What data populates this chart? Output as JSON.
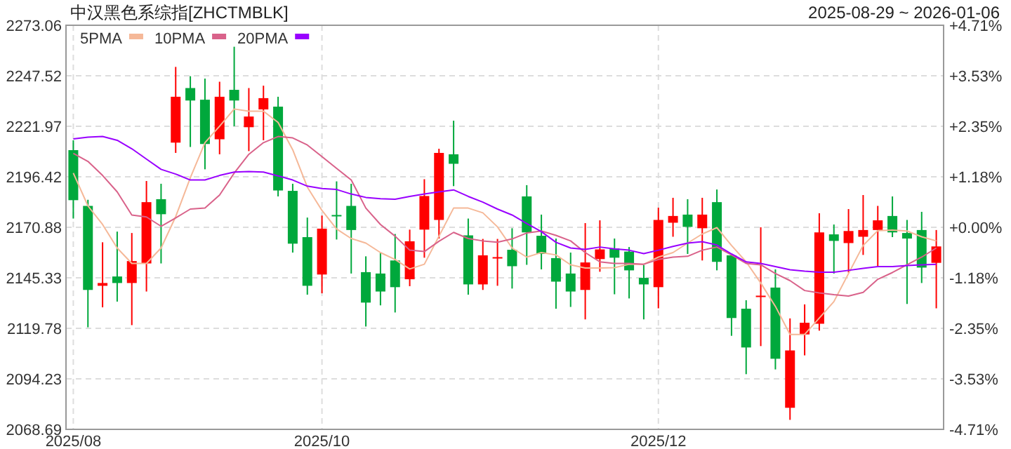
{
  "chart_data": {
    "type": "candlestick",
    "title": "中汉黑色系综指[ZHCTMBLK]",
    "subtitle": "2025-08-29 ~ 2026-01-06",
    "categories": [
      "2025/08",
      null,
      null,
      null,
      null,
      null,
      null,
      null,
      null,
      null,
      null,
      null,
      null,
      null,
      null,
      null,
      null,
      "2025/10",
      null,
      null,
      null,
      null,
      null,
      null,
      null,
      null,
      null,
      null,
      null,
      null,
      null,
      null,
      null,
      null,
      null,
      null,
      null,
      null,
      null,
      null,
      "2025/12",
      null,
      null,
      null,
      null,
      null,
      null,
      null,
      null,
      null,
      null,
      null,
      null,
      null,
      null,
      null,
      null,
      null,
      null,
      null
    ],
    "ohlc": [
      [
        2209.9,
        2214.9,
        2175.3,
        2184.6
      ],
      [
        2181.7,
        2184.8,
        2120.3,
        2139.2
      ],
      [
        2141.3,
        2163.3,
        2130.4,
        2142.7
      ],
      [
        2146.0,
        2168.7,
        2133.3,
        2142.7
      ],
      [
        2142.7,
        2168.0,
        2121.4,
        2153.8
      ],
      [
        2152.6,
        2194.3,
        2138.4,
        2183.6
      ],
      [
        2185.1,
        2192.9,
        2152.6,
        2177.5
      ],
      [
        2213.7,
        2252.0,
        2208.5,
        2236.9
      ],
      [
        2241.3,
        2247.3,
        2211.5,
        2235.0
      ],
      [
        2235.4,
        2246.1,
        2200.2,
        2213.0
      ],
      [
        2215.4,
        2244.5,
        2207.8,
        2236.9
      ],
      [
        2240.4,
        2262.2,
        2222.0,
        2235.0
      ],
      [
        2221.5,
        2241.3,
        2209.4,
        2226.9
      ],
      [
        2230.5,
        2242.5,
        2214.9,
        2236.2
      ],
      [
        2231.9,
        2236.9,
        2186.5,
        2189.5
      ],
      [
        2189.3,
        2192.9,
        2158.1,
        2162.6
      ],
      [
        2165.9,
        2175.8,
        2136.8,
        2141.3
      ],
      [
        2147.0,
        2176.8,
        2137.5,
        2170.2
      ],
      [
        2177.1,
        2194.1,
        2164.7,
        2176.6
      ],
      [
        2181.7,
        2192.9,
        2147.5,
        2169.5
      ],
      [
        2148.2,
        2156.2,
        2120.7,
        2132.8
      ],
      [
        2147.5,
        2158.1,
        2131.4,
        2138.4
      ],
      [
        2154.1,
        2167.5,
        2127.8,
        2140.6
      ],
      [
        2144.6,
        2169.7,
        2141.1,
        2163.8
      ],
      [
        2169.7,
        2195.2,
        2155.5,
        2186.7
      ],
      [
        2174.6,
        2210.6,
        2165.2,
        2208.5
      ],
      [
        2207.8,
        2224.8,
        2191.7,
        2203.0
      ],
      [
        2166.8,
        2175.3,
        2136.8,
        2142.0
      ],
      [
        2142.0,
        2165.0,
        2139.2,
        2156.7
      ],
      [
        2155.6,
        2165.0,
        2141.3,
        2155.8
      ],
      [
        2159.5,
        2170.4,
        2139.9,
        2151.2
      ],
      [
        2186.5,
        2192.2,
        2151.9,
        2168.3
      ],
      [
        2166.6,
        2177.3,
        2149.6,
        2157.4
      ],
      [
        2155.3,
        2165.2,
        2129.7,
        2143.4
      ],
      [
        2147.5,
        2158.1,
        2130.6,
        2138.4
      ],
      [
        2139.2,
        2173.0,
        2124.3,
        2153.1
      ],
      [
        2154.8,
        2174.4,
        2148.4,
        2159.7
      ],
      [
        2160.2,
        2165.2,
        2137.0,
        2155.5
      ],
      [
        2158.6,
        2160.9,
        2134.9,
        2149.1
      ],
      [
        2145.3,
        2151.9,
        2124.3,
        2142.0
      ],
      [
        2140.6,
        2180.8,
        2129.9,
        2174.6
      ],
      [
        2173.2,
        2185.8,
        2166.1,
        2176.6
      ],
      [
        2177.3,
        2185.1,
        2157.4,
        2171.1
      ],
      [
        2170.4,
        2185.8,
        2154.1,
        2177.3
      ],
      [
        2183.6,
        2190.0,
        2149.1,
        2153.4
      ],
      [
        2156.7,
        2156.7,
        2116.0,
        2125.0
      ],
      [
        2129.7,
        2134.0,
        2096.6,
        2110.1
      ],
      [
        2136.1,
        2170.9,
        2110.8,
        2136.3
      ],
      [
        2140.4,
        2149.6,
        2099.0,
        2104.4
      ],
      [
        2079.6,
        2124.8,
        2073.5,
        2108.6
      ],
      [
        2116.7,
        2131.9,
        2106.1,
        2122.6
      ],
      [
        2122.1,
        2178.0,
        2118.6,
        2168.3
      ],
      [
        2167.3,
        2172.3,
        2147.5,
        2164.0
      ],
      [
        2162.9,
        2180.1,
        2148.0,
        2169.0
      ],
      [
        2166.1,
        2187.2,
        2156.9,
        2169.5
      ],
      [
        2169.5,
        2181.7,
        2151.0,
        2174.4
      ],
      [
        2176.6,
        2186.5,
        2165.9,
        2168.3
      ],
      [
        2168.0,
        2174.6,
        2132.1,
        2165.2
      ],
      [
        2169.5,
        2178.7,
        2142.7,
        2150.5
      ],
      [
        2152.9,
        2169.5,
        2129.9,
        2161.2
      ]
    ],
    "colors": [
      "#00a83c",
      "#00a83c",
      "#ff0000",
      "#00a83c",
      "#ff0000",
      "#ff0000",
      "#00a83c",
      "#ff0000",
      "#00a83c",
      "#00a83c",
      "#ff0000",
      "#00a83c",
      "#ff0000",
      "#ff0000",
      "#00a83c",
      "#00a83c",
      "#00a83c",
      "#ff0000",
      "#00a83c",
      "#00a83c",
      "#00a83c",
      "#00a83c",
      "#00a83c",
      "#ff0000",
      "#ff0000",
      "#ff0000",
      "#00a83c",
      "#00a83c",
      "#ff0000",
      "#ff0000",
      "#00a83c",
      "#00a83c",
      "#00a83c",
      "#00a83c",
      "#00a83c",
      "#ff0000",
      "#ff0000",
      "#00a83c",
      "#00a83c",
      "#00a83c",
      "#ff0000",
      "#ff0000",
      "#00a83c",
      "#ff0000",
      "#00a83c",
      "#00a83c",
      "#00a83c",
      "#ff0000",
      "#00a83c",
      "#ff0000",
      "#ff0000",
      "#ff0000",
      "#00a83c",
      "#ff0000",
      "#ff0000",
      "#ff0000",
      "#00a83c",
      "#00a83c",
      "#00a83c",
      "#ff0000"
    ],
    "series": [
      {
        "name": "5PMA",
        "type": "line",
        "color": "#f5b898",
        "values": [
          2198.3,
          2181.7,
          2172.3,
          2160.4,
          2152.6,
          2152.6,
          2160.4,
          2176.3,
          2195.9,
          2213.7,
          2222.0,
          2230.7,
          2229.6,
          2229.6,
          2223.9,
          2210.1,
          2191.2,
          2179.4,
          2170.0,
          2165.2,
          2162.9,
          2158.1,
          2154.6,
          2149.8,
          2152.2,
          2166.4,
          2180.6,
          2180.6,
          2178.2,
          2171.1,
          2160.4,
          2155.8,
          2158.1,
          2156.9,
          2151.9,
          2150.3,
          2150.3,
          2150.5,
          2152.2,
          2152.2,
          2155.8,
          2158.1,
          2162.9,
          2167.5,
          2170.7,
          2161.7,
          2153.4,
          2142.7,
          2130.9,
          2116.7,
          2116.7,
          2125.0,
          2133.3,
          2147.5,
          2161.7,
          2169.2,
          2169.5,
          2169.0,
          2166.1,
          2164.0
        ]
      },
      {
        "name": "10PMA",
        "type": "line",
        "color": "#d9628a",
        "values": [
          2208.3,
          2204.2,
          2197.1,
          2188.8,
          2177.1,
          2176.1,
          2171.4,
          2175.6,
          2180.1,
          2180.6,
          2187.2,
          2198.3,
          2207.8,
          2213.7,
          2216.8,
          2216.1,
          2212.5,
          2206.6,
          2200.7,
          2194.8,
          2180.6,
          2172.3,
          2166.4,
          2159.3,
          2158.6,
          2163.8,
          2168.3,
          2165.2,
          2164.0,
          2163.3,
          2165.0,
          2168.0,
          2169.0,
          2166.8,
          2164.0,
          2158.1,
          2153.4,
          2152.6,
          2152.6,
          2152.2,
          2154.6,
          2155.8,
          2156.2,
          2159.3,
          2160.9,
          2156.9,
          2152.6,
          2151.9,
          2147.5,
          2143.9,
          2138.9,
          2137.7,
          2136.8,
          2136.1,
          2138.0,
          2144.6,
          2148.0,
          2151.9,
          2155.8,
          2160.4
        ]
      },
      {
        "name": "20PMA",
        "type": "line",
        "color": "#9900ff",
        "values": [
          2215.6,
          2216.5,
          2216.8,
          2214.9,
          2210.6,
          2205.4,
          2200.2,
          2197.8,
          2194.8,
          2194.8,
          2197.1,
          2198.8,
          2199.1,
          2198.8,
          2196.9,
          2194.8,
          2191.7,
          2190.5,
          2190.0,
          2187.7,
          2186.0,
          2185.3,
          2185.1,
          2186.5,
          2187.7,
          2188.8,
          2189.8,
          2186.5,
          2183.6,
          2180.1,
          2177.1,
          2172.8,
          2168.7,
          2163.3,
          2160.4,
          2159.7,
          2160.9,
          2160.0,
          2159.3,
          2157.6,
          2159.3,
          2161.2,
          2162.9,
          2163.6,
          2161.9,
          2157.4,
          2153.4,
          2152.6,
          2151.0,
          2149.4,
          2148.7,
          2148.2,
          2148.2,
          2149.1,
          2150.1,
          2151.0,
          2151.0,
          2151.5,
          2151.9,
          2152.2
        ]
      }
    ],
    "ylim": [
      2068.69,
      2273.06
    ],
    "yticks": [
      2068.69,
      2094.23,
      2119.78,
      2145.33,
      2170.88,
      2196.42,
      2221.97,
      2247.52,
      2273.06
    ],
    "y2lim": [
      -4.71,
      4.71
    ],
    "y2ticks": [
      {
        "value": -4.71,
        "label": "-4.71%"
      },
      {
        "value": -3.53,
        "label": "-3.53%"
      },
      {
        "value": -2.35,
        "label": "-2.35%"
      },
      {
        "value": -1.18,
        "label": "-1.18%"
      },
      {
        "value": 0,
        "label": "+0.00%"
      },
      {
        "value": 1.18,
        "label": "+1.18%"
      },
      {
        "value": 2.35,
        "label": "+2.35%"
      },
      {
        "value": 3.53,
        "label": "+3.53%"
      },
      {
        "value": 4.71,
        "label": "+4.71%"
      }
    ],
    "grid": true,
    "legend": "top left",
    "marker": "none"
  }
}
